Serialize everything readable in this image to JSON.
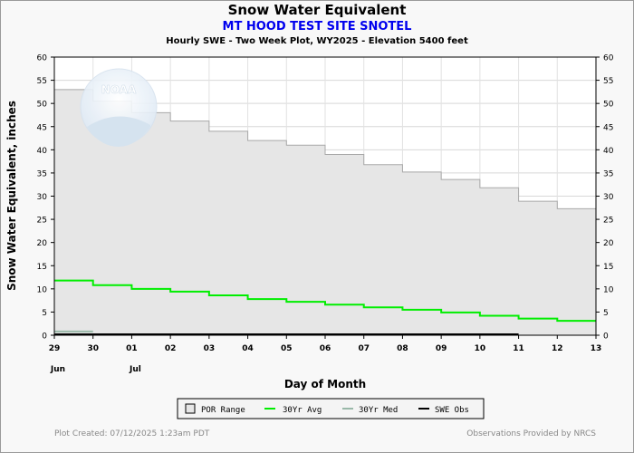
{
  "header": {
    "title": "Snow Water Equivalent",
    "station": "MT HOOD TEST SITE SNOTEL",
    "description": "Hourly SWE - Two Week Plot, WY2025 -  Elevation 5400 feet"
  },
  "logo": {
    "text": "NOAA"
  },
  "footer": {
    "created": "Plot Created: 07/12/2025 1:23am PDT",
    "provided": "Observations Provided by NRCS"
  },
  "colors": {
    "por_fill": "#e6e6e6",
    "por_edge": "#a8a8a8",
    "avg": "#00ee00",
    "med": "#99b8a8",
    "obs": "#000000",
    "station_title": "#0000ee"
  },
  "chart_data": {
    "type": "area",
    "title": "Snow Water Equivalent",
    "xlabel": "Day of Month",
    "ylabel": "Snow Water Equivalent, inches",
    "ylim": [
      0,
      60
    ],
    "yticks": [
      0,
      5,
      10,
      15,
      20,
      25,
      30,
      35,
      40,
      45,
      50,
      55,
      60
    ],
    "x_ticks": [
      "29",
      "30",
      "01",
      "02",
      "03",
      "04",
      "05",
      "06",
      "07",
      "08",
      "09",
      "10",
      "11",
      "12",
      "13"
    ],
    "x_month_labels": [
      {
        "at_tick": "29",
        "label": "Jun"
      },
      {
        "at_tick": "01",
        "label": "Jul"
      }
    ],
    "grid": true,
    "legend_position": "bottom-center",
    "series": [
      {
        "name": "POR Range",
        "style": "step-area",
        "days": [
          "29",
          "30",
          "01",
          "02",
          "03",
          "04",
          "05",
          "06",
          "07",
          "08",
          "09",
          "10",
          "11",
          "12"
        ],
        "values": [
          53,
          50.5,
          48,
          46.2,
          44,
          42,
          41,
          39,
          36.8,
          35.2,
          33.6,
          31.8,
          28.9,
          27.3
        ]
      },
      {
        "name": "30Yr Avg",
        "style": "step-line",
        "days": [
          "29",
          "30",
          "01",
          "02",
          "03",
          "04",
          "05",
          "06",
          "07",
          "08",
          "09",
          "10",
          "11",
          "12"
        ],
        "values": [
          11.8,
          10.8,
          10,
          9.4,
          8.6,
          7.8,
          7.2,
          6.6,
          6.0,
          5.5,
          4.9,
          4.2,
          3.6,
          3.1
        ]
      },
      {
        "name": "30Yr Med",
        "style": "step-line",
        "days": [
          "29"
        ],
        "values": [
          0.8
        ]
      },
      {
        "name": "SWE Obs",
        "style": "line",
        "days": [
          "29",
          "11"
        ],
        "values": [
          0,
          0
        ]
      }
    ]
  }
}
